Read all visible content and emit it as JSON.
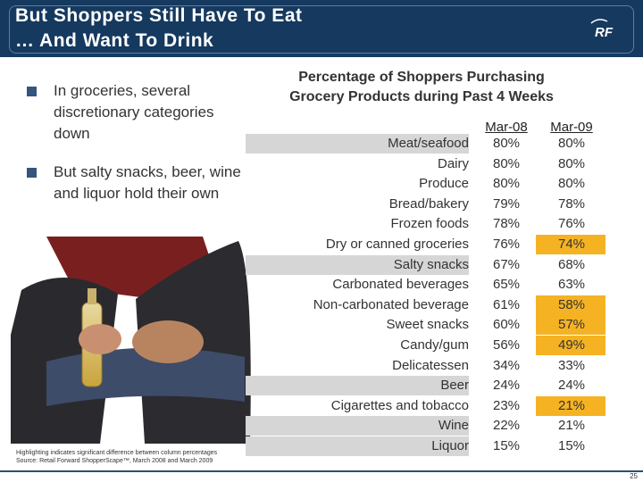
{
  "slide": {
    "title_line1": "But Shoppers Still Have To Eat",
    "title_line2": "… And Want To Drink",
    "logo_text": "RF",
    "bullets": [
      "In groceries, several discretionary categories down",
      "But salty snacks, beer, wine and liquor hold their own"
    ],
    "footnote_line1": "Highlighting indicates significant difference between column percentages",
    "footnote_line2": "Source: Retail Forward ShopperScape™, March 2008 and March 2009",
    "page_number": "25",
    "colors": {
      "header_bg": "#15395f",
      "highlight": "#f5b324",
      "band": "#d6d6d6",
      "bullet": "#34557e"
    }
  },
  "table": {
    "title_line1": "Percentage of Shoppers Purchasing",
    "title_line2": "Grocery Products during Past 4 Weeks",
    "columns": [
      "Mar-08",
      "Mar-09"
    ],
    "rows": [
      {
        "label": "Meat/seafood",
        "mar08": "80%",
        "mar09": "80%",
        "shaded": true,
        "highlight": false
      },
      {
        "label": "Dairy",
        "mar08": "80%",
        "mar09": "80%",
        "shaded": false,
        "highlight": false
      },
      {
        "label": "Produce",
        "mar08": "80%",
        "mar09": "80%",
        "shaded": false,
        "highlight": false
      },
      {
        "label": "Bread/bakery",
        "mar08": "79%",
        "mar09": "78%",
        "shaded": false,
        "highlight": false
      },
      {
        "label": "Frozen foods",
        "mar08": "78%",
        "mar09": "76%",
        "shaded": false,
        "highlight": false
      },
      {
        "label": "Dry or canned groceries",
        "mar08": "76%",
        "mar09": "74%",
        "shaded": false,
        "highlight": true
      },
      {
        "label": "Salty snacks",
        "mar08": "67%",
        "mar09": "68%",
        "shaded": true,
        "highlight": false
      },
      {
        "label": "Carbonated beverages",
        "mar08": "65%",
        "mar09": "63%",
        "shaded": false,
        "highlight": false
      },
      {
        "label": "Non-carbonated beverage",
        "mar08": "61%",
        "mar09": "58%",
        "shaded": false,
        "highlight": true
      },
      {
        "label": "Sweet snacks",
        "mar08": "60%",
        "mar09": "57%",
        "shaded": false,
        "highlight": true
      },
      {
        "label": "Candy/gum",
        "mar08": "56%",
        "mar09": "49%",
        "shaded": false,
        "highlight": true
      },
      {
        "label": "Delicatessen",
        "mar08": "34%",
        "mar09": "33%",
        "shaded": false,
        "highlight": false
      },
      {
        "label": "Beer",
        "mar08": "24%",
        "mar09": "24%",
        "shaded": true,
        "highlight": false
      },
      {
        "label": "Cigarettes and tobacco",
        "mar08": "23%",
        "mar09": "21%",
        "shaded": false,
        "highlight": true
      },
      {
        "label": "Wine",
        "mar08": "22%",
        "mar09": "21%",
        "shaded": true,
        "highlight": false
      },
      {
        "label": "Liquor",
        "mar08": "15%",
        "mar09": "15%",
        "shaded": true,
        "highlight": false
      }
    ]
  }
}
